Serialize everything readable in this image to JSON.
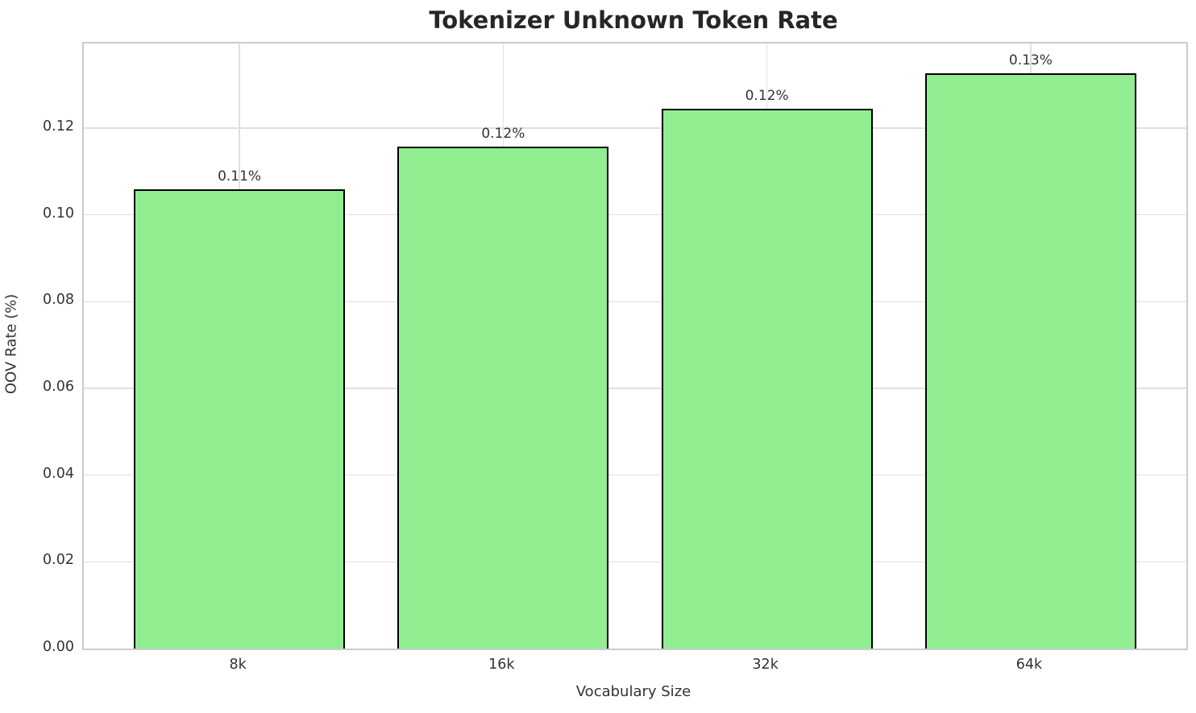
{
  "chart": {
    "title": "Tokenizer Unknown Token Rate",
    "xlabel": "Vocabulary Size",
    "ylabel": "OOV Rate (%)"
  },
  "chart_data": {
    "type": "bar",
    "title": "Tokenizer Unknown Token Rate",
    "xlabel": "Vocabulary Size",
    "ylabel": "OOV Rate (%)",
    "categories": [
      "8k",
      "16k",
      "32k",
      "64k"
    ],
    "values": [
      0.1059,
      0.1157,
      0.1245,
      0.1326
    ],
    "bar_labels": [
      "0.11%",
      "0.12%",
      "0.12%",
      "0.13%"
    ],
    "yticks": [
      0.0,
      0.02,
      0.04,
      0.06,
      0.08,
      0.1,
      0.12
    ],
    "ytick_labels": [
      "0.00",
      "0.02",
      "0.04",
      "0.06",
      "0.08",
      "0.10",
      "0.12"
    ],
    "ylim": [
      0,
      0.1395
    ],
    "xlim": [
      -0.59,
      3.59
    ],
    "bar_width": 0.8,
    "grid": true,
    "legend": "none",
    "bar_color": "#90EE90",
    "bar_edge_color": "#000000",
    "grid_color": "#e0e0e0",
    "spine_color": "#cccccc",
    "text_color": "#333333",
    "title_color": "#262626"
  }
}
